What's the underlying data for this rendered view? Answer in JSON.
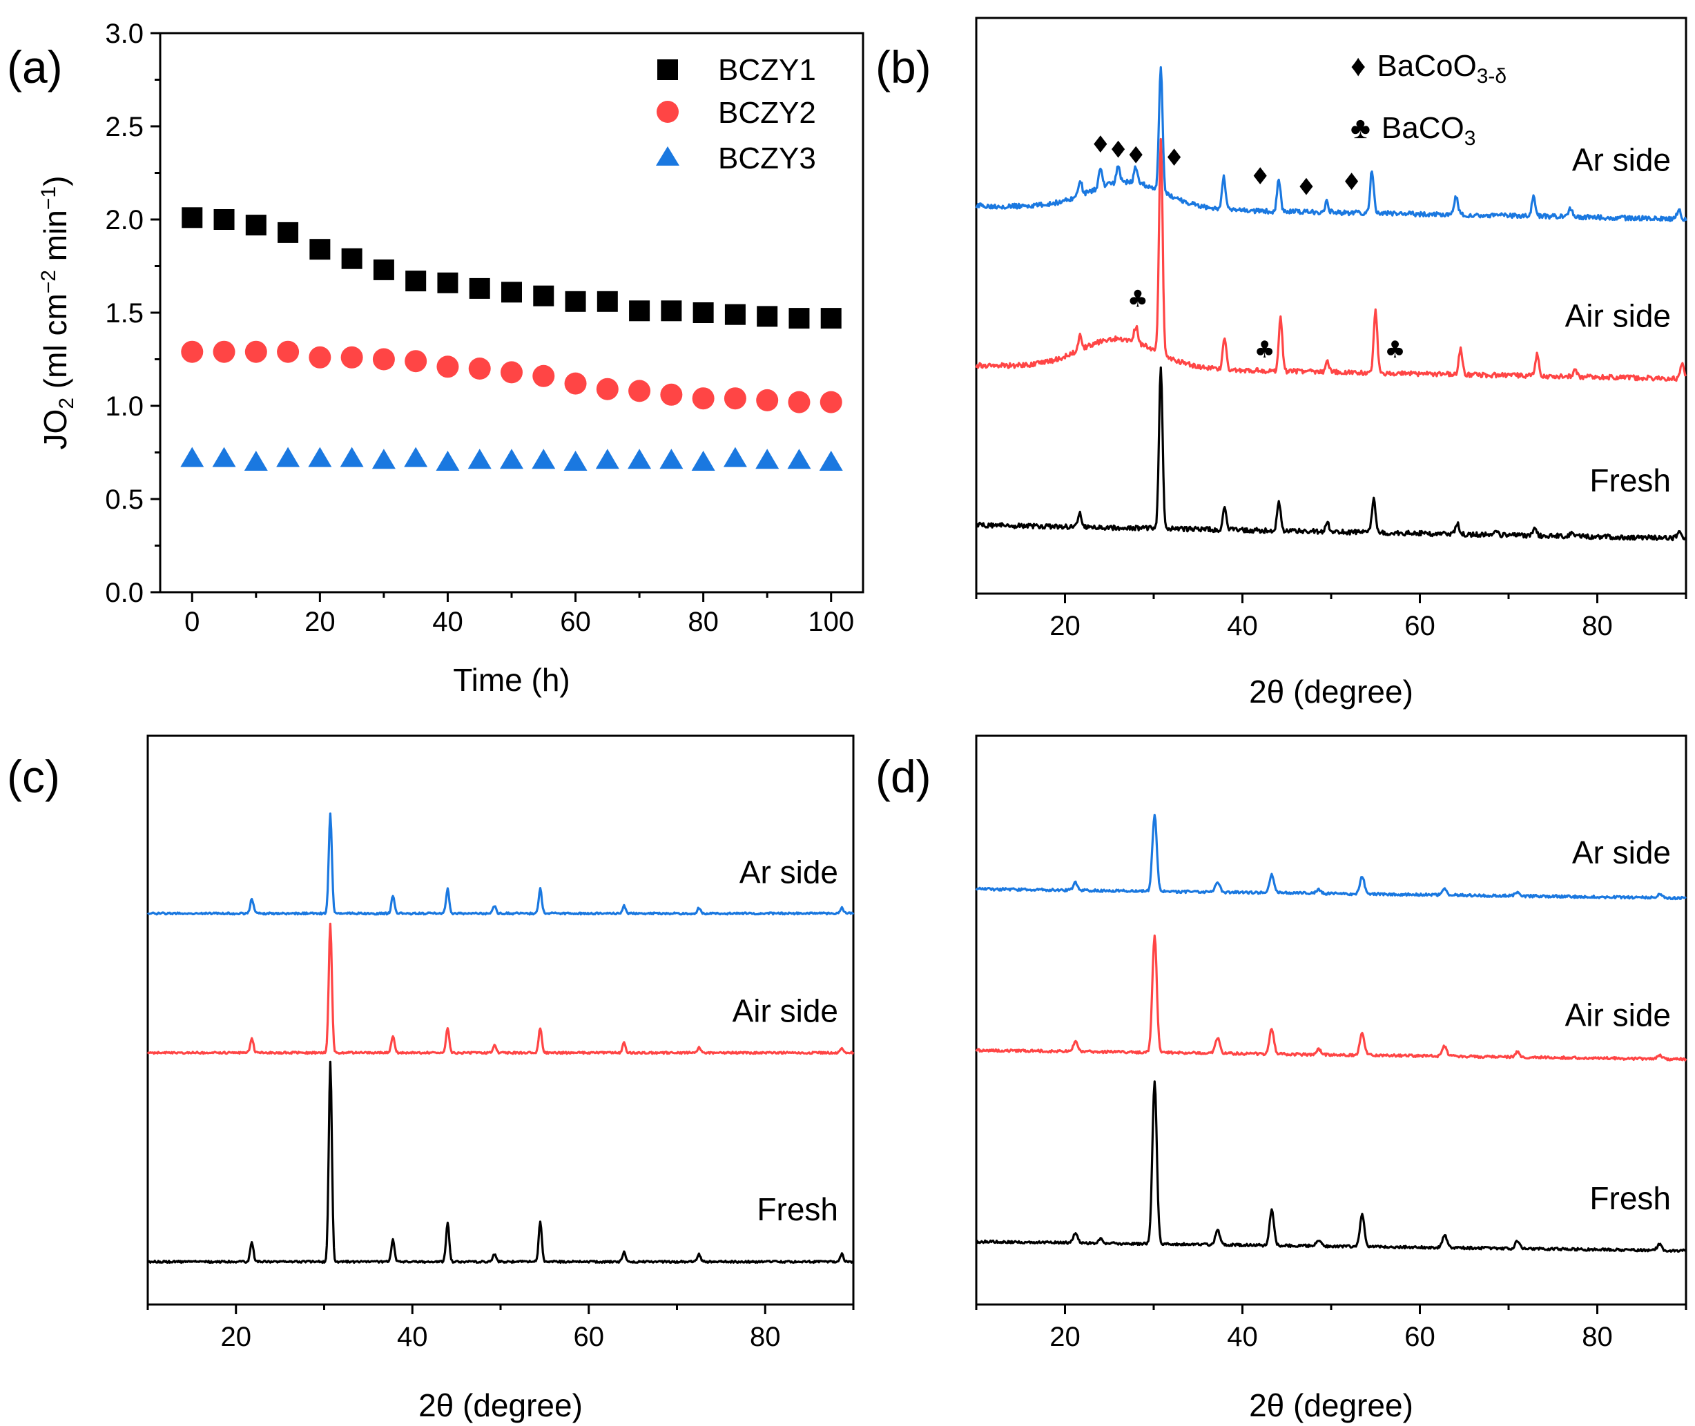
{
  "colors": {
    "black": "#000000",
    "red": "#ff4545",
    "blue": "#1a78e0"
  },
  "chart_data": [
    {
      "id": "a",
      "panel_label": "(a)",
      "type": "scatter",
      "xlabel": "Time (h)",
      "ylabel_main": "JO",
      "ylabel_sub": "2",
      "ylabel_unit": "(ml cm",
      "ylabel_exp1": "−2",
      "ylabel_unit2": " min",
      "ylabel_exp2": "−1",
      "ylabel_close": ")",
      "xlim": [
        -5,
        105
      ],
      "ylim": [
        0,
        3.0
      ],
      "xticks": [
        0,
        20,
        40,
        60,
        80,
        100
      ],
      "yticks": [
        "0.0",
        "0.5",
        "1.0",
        "1.5",
        "2.0",
        "2.5",
        "3.0"
      ],
      "x": [
        0,
        5,
        10,
        15,
        20,
        25,
        30,
        35,
        40,
        45,
        50,
        55,
        60,
        65,
        70,
        75,
        80,
        85,
        90,
        95,
        100
      ],
      "series": [
        {
          "name": "BCZY1",
          "marker": "square",
          "color": "#000000",
          "values": [
            2.01,
            2.0,
            1.97,
            1.93,
            1.84,
            1.79,
            1.73,
            1.67,
            1.66,
            1.63,
            1.61,
            1.59,
            1.56,
            1.56,
            1.51,
            1.51,
            1.5,
            1.49,
            1.48,
            1.47,
            1.47
          ]
        },
        {
          "name": "BCZY2",
          "marker": "circle",
          "color": "#ff4545",
          "values": [
            1.29,
            1.29,
            1.29,
            1.29,
            1.26,
            1.26,
            1.25,
            1.24,
            1.21,
            1.2,
            1.18,
            1.16,
            1.12,
            1.09,
            1.08,
            1.06,
            1.04,
            1.04,
            1.03,
            1.02,
            1.02
          ]
        },
        {
          "name": "BCZY3",
          "marker": "triangle",
          "color": "#1a78e0",
          "values": [
            0.72,
            0.72,
            0.7,
            0.72,
            0.72,
            0.72,
            0.71,
            0.72,
            0.7,
            0.71,
            0.71,
            0.71,
            0.7,
            0.71,
            0.71,
            0.71,
            0.7,
            0.72,
            0.71,
            0.71,
            0.7
          ]
        }
      ]
    },
    {
      "id": "b",
      "panel_label": "(b)",
      "type": "line",
      "xlabel": "2θ (degree)",
      "xlim": [
        10,
        90
      ],
      "xticks": [
        20,
        40,
        60,
        80
      ],
      "legend": [
        {
          "symbol": "♦",
          "text": "BaCoO",
          "sub": "3-δ"
        },
        {
          "symbol": "♣",
          "text": "BaCO",
          "sub": "3"
        }
      ],
      "traces": [
        {
          "name": "Ar side",
          "color": "#1a78e0",
          "offset": 6.0,
          "hump": {
            "center": 27,
            "width": 6,
            "height": 0.5
          },
          "peaks": [
            [
              21.7,
              0.3
            ],
            [
              24.0,
              0.35
            ],
            [
              26.0,
              0.3
            ],
            [
              28.0,
              0.3
            ],
            [
              30.8,
              2.3
            ],
            [
              37.9,
              0.6
            ],
            [
              44.1,
              0.6
            ],
            [
              49.5,
              0.2
            ],
            [
              54.6,
              0.8
            ],
            [
              64.1,
              0.35
            ],
            [
              72.8,
              0.35
            ],
            [
              77.0,
              0.15
            ],
            [
              89.2,
              0.2
            ]
          ],
          "annotations": [
            {
              "symbol": "♦",
              "x": 24.0,
              "y": 7.25
            },
            {
              "symbol": "♦",
              "x": 26.0,
              "y": 7.15
            },
            {
              "symbol": "♦",
              "x": 28.0,
              "y": 7.05
            },
            {
              "symbol": "♦",
              "x": 32.3,
              "y": 7.0
            },
            {
              "symbol": "♦",
              "x": 42.0,
              "y": 6.65
            },
            {
              "symbol": "♦",
              "x": 47.2,
              "y": 6.45
            },
            {
              "symbol": "♦",
              "x": 52.3,
              "y": 6.55
            }
          ]
        },
        {
          "name": "Air side",
          "color": "#ff4545",
          "offset": 3.0,
          "hump": {
            "center": 26,
            "width": 6,
            "height": 0.55
          },
          "peaks": [
            [
              21.7,
              0.3
            ],
            [
              28.0,
              0.3
            ],
            [
              30.8,
              4.0
            ],
            [
              38.0,
              0.6
            ],
            [
              44.3,
              1.0
            ],
            [
              49.6,
              0.2
            ],
            [
              55.0,
              1.2
            ],
            [
              64.6,
              0.5
            ],
            [
              73.2,
              0.4
            ],
            [
              77.5,
              0.15
            ],
            [
              89.6,
              0.3
            ]
          ],
          "annotations": [
            {
              "symbol": "♣",
              "x": 28.2,
              "y": 4.35
            },
            {
              "symbol": "♣",
              "x": 42.5,
              "y": 3.4
            },
            {
              "symbol": "♣",
              "x": 57.2,
              "y": 3.4
            }
          ]
        },
        {
          "name": "Fresh",
          "color": "#000000",
          "offset": 0.0,
          "hump": null,
          "peaks": [
            [
              21.7,
              0.25
            ],
            [
              30.8,
              3.0
            ],
            [
              38.0,
              0.45
            ],
            [
              44.1,
              0.55
            ],
            [
              49.6,
              0.15
            ],
            [
              54.8,
              0.65
            ],
            [
              64.2,
              0.2
            ],
            [
              68.5,
              0.1
            ],
            [
              73.0,
              0.15
            ],
            [
              77.1,
              0.08
            ],
            [
              89.2,
              0.12
            ]
          ],
          "annotations": []
        }
      ]
    },
    {
      "id": "c",
      "panel_label": "(c)",
      "type": "line",
      "xlabel": "2θ (degree)",
      "xlim": [
        10,
        90
      ],
      "xticks": [
        20,
        40,
        60,
        80
      ],
      "traces": [
        {
          "name": "Ar side",
          "color": "#1a78e0",
          "offset": 7.0,
          "peaks": [
            [
              21.8,
              0.3
            ],
            [
              30.7,
              2.0
            ],
            [
              37.8,
              0.35
            ],
            [
              44.0,
              0.5
            ],
            [
              49.3,
              0.15
            ],
            [
              54.5,
              0.5
            ],
            [
              64.0,
              0.15
            ],
            [
              72.5,
              0.12
            ],
            [
              88.7,
              0.12
            ]
          ]
        },
        {
          "name": "Air side",
          "color": "#ff4545",
          "offset": 4.2,
          "peaks": [
            [
              21.8,
              0.3
            ],
            [
              30.7,
              2.6
            ],
            [
              37.8,
              0.35
            ],
            [
              44.0,
              0.5
            ],
            [
              49.3,
              0.15
            ],
            [
              54.5,
              0.5
            ],
            [
              64.0,
              0.2
            ],
            [
              72.5,
              0.12
            ],
            [
              88.7,
              0.1
            ]
          ]
        },
        {
          "name": "Fresh",
          "color": "#000000",
          "offset": 0.0,
          "peaks": [
            [
              21.8,
              0.4
            ],
            [
              30.7,
              4.0
            ],
            [
              37.8,
              0.45
            ],
            [
              44.0,
              0.8
            ],
            [
              49.3,
              0.15
            ],
            [
              54.5,
              0.8
            ],
            [
              64.0,
              0.2
            ],
            [
              72.5,
              0.15
            ],
            [
              88.7,
              0.15
            ]
          ]
        }
      ]
    },
    {
      "id": "d",
      "panel_label": "(d)",
      "type": "line",
      "xlabel": "2θ (degree)",
      "xlim": [
        10,
        90
      ],
      "xticks": [
        20,
        40,
        60,
        80
      ],
      "traces": [
        {
          "name": "Ar side",
          "color": "#1a78e0",
          "offset": 7.0,
          "peaks": [
            [
              21.2,
              0.15
            ],
            [
              30.1,
              1.5
            ],
            [
              37.2,
              0.2
            ],
            [
              43.3,
              0.35
            ],
            [
              48.6,
              0.08
            ],
            [
              53.5,
              0.35
            ],
            [
              62.8,
              0.12
            ],
            [
              71.0,
              0.08
            ],
            [
              87.0,
              0.06
            ]
          ]
        },
        {
          "name": "Air side",
          "color": "#ff4545",
          "offset": 3.8,
          "peaks": [
            [
              21.2,
              0.2
            ],
            [
              30.1,
              2.3
            ],
            [
              37.2,
              0.3
            ],
            [
              43.3,
              0.5
            ],
            [
              48.6,
              0.1
            ],
            [
              53.5,
              0.45
            ],
            [
              62.8,
              0.2
            ],
            [
              71.0,
              0.1
            ],
            [
              87.0,
              0.08
            ]
          ]
        },
        {
          "name": "Fresh",
          "color": "#000000",
          "offset": 0.0,
          "peaks": [
            [
              21.2,
              0.2
            ],
            [
              24.0,
              0.08
            ],
            [
              30.1,
              3.2
            ],
            [
              37.2,
              0.3
            ],
            [
              43.3,
              0.7
            ],
            [
              48.6,
              0.12
            ],
            [
              53.5,
              0.65
            ],
            [
              62.8,
              0.25
            ],
            [
              71.0,
              0.15
            ],
            [
              87.0,
              0.12
            ]
          ]
        }
      ]
    }
  ]
}
